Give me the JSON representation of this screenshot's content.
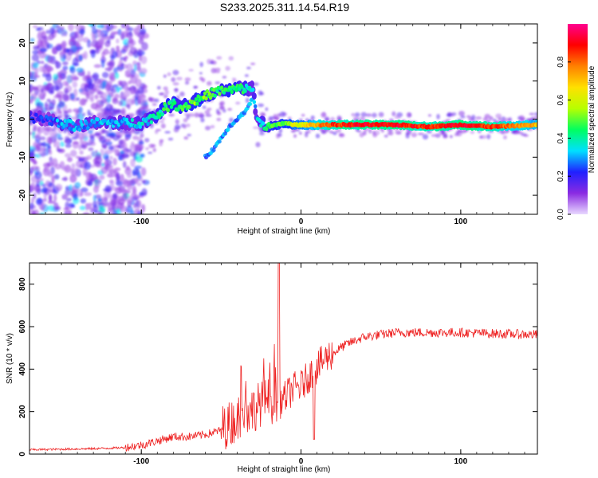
{
  "title": "S233.2025.311.14.54.R19",
  "chart_data": [
    {
      "type": "heatmap",
      "name": "spectrogram",
      "xlabel": "Height of straight line (km)",
      "ylabel": "Frequency (Hz)",
      "xlim": [
        -170,
        148
      ],
      "ylim": [
        -25,
        25
      ],
      "xticks": [
        -100,
        0,
        100
      ],
      "yticks": [
        20,
        10,
        0,
        -10,
        -20
      ],
      "xtick_labels": [
        "-100",
        "0",
        "100"
      ],
      "ytick_labels": [
        "20",
        "10",
        "0",
        "-10",
        "-20"
      ],
      "colorbar": {
        "label": "Normalized spectral amplitude",
        "range": [
          0,
          1
        ],
        "ticks": [
          0.0,
          0.2,
          0.4,
          0.6,
          0.8
        ],
        "tick_labels": [
          "0.0",
          "0.2",
          "0.4",
          "0.6",
          "0.8"
        ],
        "colormap": [
          "#e8d8ff",
          "#8a2be2",
          "#2020ff",
          "#00e0ff",
          "#00ff60",
          "#b8ff00",
          "#ffe000",
          "#ff8000",
          "#ff0000",
          "#ff0090"
        ]
      },
      "ridge": {
        "x": [
          -170,
          -160,
          -150,
          -140,
          -130,
          -120,
          -110,
          -100,
          -95,
          -90,
          -85,
          -80,
          -75,
          -70,
          -65,
          -60,
          -55,
          -50,
          -45,
          -40,
          -35,
          -30,
          -28,
          -25,
          -20,
          -15,
          -10,
          -5,
          0,
          10,
          20,
          40,
          60,
          80,
          100,
          120,
          148
        ],
        "y": [
          0.5,
          0,
          -1,
          -2,
          -1,
          -1,
          -1,
          -1,
          0,
          1,
          3,
          4,
          3,
          4,
          5,
          6,
          7,
          7.5,
          7.5,
          8,
          8,
          8,
          0,
          -1,
          -2,
          -1.5,
          -1,
          -1.5,
          -1.5,
          -1.5,
          -1.5,
          -1.5,
          -1.5,
          -2,
          -1.5,
          -2,
          -1.5
        ],
        "amplitude": [
          0.2,
          0.2,
          0.3,
          0.3,
          0.3,
          0.3,
          0.3,
          0.35,
          0.35,
          0.4,
          0.45,
          0.45,
          0.45,
          0.5,
          0.5,
          0.5,
          0.45,
          0.45,
          0.45,
          0.45,
          0.4,
          0.35,
          0.3,
          0.35,
          0.45,
          0.5,
          0.5,
          0.6,
          0.6,
          0.75,
          0.85,
          0.9,
          0.9,
          0.85,
          0.9,
          0.85,
          0.7
        ]
      },
      "branch": {
        "x": [
          -60,
          -55,
          -50,
          -45,
          -40,
          -35,
          -32,
          -30
        ],
        "y": [
          -10,
          -8,
          -5,
          -2,
          0,
          2,
          4,
          6
        ]
      },
      "noise_region_x": [
        -170,
        -105
      ]
    },
    {
      "type": "line",
      "name": "snr",
      "xlabel": "Height of straight line (km)",
      "ylabel": "SNR (10 * v/v)",
      "xlim": [
        -170,
        148
      ],
      "ylim": [
        0,
        900
      ],
      "xticks": [
        -100,
        0,
        100
      ],
      "yticks": [
        0,
        200,
        400,
        600,
        800
      ],
      "xtick_labels": [
        "-100",
        "0",
        "100"
      ],
      "ytick_labels": [
        "0",
        "200",
        "400",
        "600",
        "800"
      ],
      "color": "#ee2222",
      "baseline": {
        "x": [
          -170,
          -130,
          -110,
          -100,
          -90,
          -80,
          -70,
          -60,
          -50,
          -45,
          -40,
          -35,
          -30,
          -25,
          -20,
          -15,
          -10,
          -5,
          0,
          5,
          10,
          15,
          20,
          25,
          30,
          40,
          50,
          60,
          80,
          100,
          120,
          148
        ],
        "y": [
          20,
          25,
          30,
          40,
          60,
          80,
          80,
          90,
          110,
          130,
          160,
          180,
          200,
          230,
          250,
          220,
          260,
          300,
          310,
          360,
          400,
          440,
          470,
          500,
          520,
          550,
          560,
          570,
          570,
          570,
          565,
          560
        ]
      },
      "spike": {
        "x": -14,
        "y": 900
      },
      "dip": {
        "x": 8,
        "y": 70
      }
    }
  ]
}
